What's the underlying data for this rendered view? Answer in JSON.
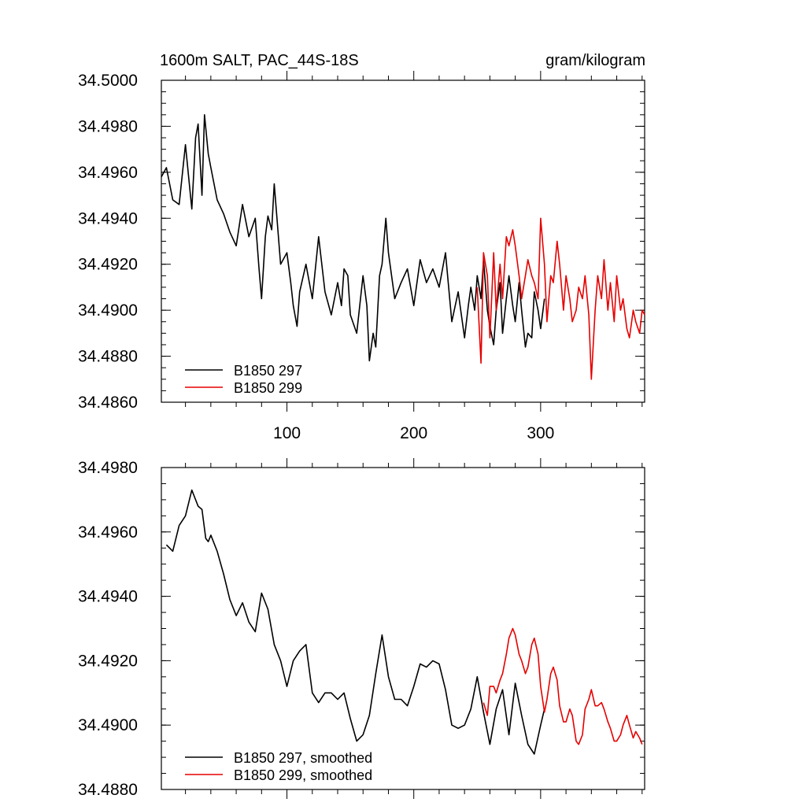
{
  "chart_data": [
    {
      "type": "line",
      "title": "1600m SALT, PAC_44S-18S",
      "units": "gram/kilogram",
      "xlim": [
        1,
        382
      ],
      "ylim": [
        34.486,
        34.5
      ],
      "xticks": [
        100,
        200,
        300
      ],
      "yticks": [
        "34.4860",
        "34.4880",
        "34.4900",
        "34.4920",
        "34.4940",
        "34.4960",
        "34.4980",
        "34.5000"
      ],
      "legend_position": "bottom-left",
      "series": [
        {
          "name": "B1850 297",
          "color": "#000000",
          "x": [
            1,
            5,
            10,
            15,
            20,
            25,
            28,
            30,
            33,
            35,
            38,
            40,
            45,
            50,
            55,
            60,
            65,
            70,
            75,
            78,
            80,
            83,
            85,
            88,
            90,
            95,
            100,
            103,
            105,
            108,
            110,
            115,
            120,
            125,
            130,
            135,
            140,
            143,
            145,
            148,
            150,
            155,
            160,
            163,
            165,
            168,
            170,
            173,
            175,
            178,
            180,
            185,
            190,
            195,
            200,
            205,
            210,
            215,
            220,
            225,
            230,
            235,
            240,
            243,
            245,
            248,
            250,
            253,
            255,
            258,
            260,
            263,
            265,
            268,
            270,
            273,
            275,
            278,
            280,
            283,
            285,
            288,
            290,
            293,
            295,
            298,
            300,
            303
          ],
          "values": [
            34.4958,
            34.4962,
            34.4948,
            34.4946,
            34.4972,
            34.4944,
            34.4975,
            34.4981,
            34.495,
            34.4985,
            34.4968,
            34.4962,
            34.4948,
            34.4942,
            34.4934,
            34.4928,
            34.4946,
            34.4932,
            34.494,
            34.4918,
            34.4905,
            34.4932,
            34.4941,
            34.4935,
            34.4955,
            34.492,
            34.4925,
            34.4912,
            34.4902,
            34.4893,
            34.4908,
            34.492,
            34.4905,
            34.4932,
            34.4908,
            34.4898,
            34.4912,
            34.4902,
            34.4918,
            34.4915,
            34.4898,
            34.489,
            34.4915,
            34.4902,
            34.4878,
            34.489,
            34.4884,
            34.4915,
            34.492,
            34.494,
            34.4925,
            34.4905,
            34.4912,
            34.4918,
            34.4902,
            34.4922,
            34.4912,
            34.4918,
            34.491,
            34.4925,
            34.4895,
            34.4908,
            34.4888,
            34.4902,
            34.491,
            34.49,
            34.4915,
            34.4905,
            34.4922,
            34.49,
            34.4893,
            34.4885,
            34.49,
            34.4912,
            34.489,
            34.4905,
            34.4915,
            34.4902,
            34.4895,
            34.4912,
            34.49,
            34.4884,
            34.489,
            34.4888,
            34.4908,
            34.49,
            34.4892,
            34.4905
          ]
        },
        {
          "name": "B1850 299",
          "color": "#e60000",
          "x": [
            250,
            253,
            255,
            258,
            260,
            263,
            265,
            268,
            270,
            273,
            275,
            278,
            280,
            283,
            285,
            288,
            290,
            293,
            295,
            298,
            300,
            303,
            305,
            308,
            310,
            313,
            315,
            318,
            320,
            323,
            325,
            328,
            330,
            333,
            335,
            338,
            340,
            343,
            345,
            348,
            350,
            353,
            355,
            358,
            360,
            363,
            365,
            368,
            370,
            373,
            375,
            378,
            380,
            382
          ],
          "values": [
            34.491,
            34.4877,
            34.4925,
            34.4915,
            34.4888,
            34.4925,
            34.49,
            34.492,
            34.4905,
            34.4932,
            34.4928,
            34.4935,
            34.4928,
            34.4915,
            34.4905,
            34.4915,
            34.4922,
            34.4915,
            34.4912,
            34.4905,
            34.494,
            34.492,
            34.4895,
            34.4915,
            34.4912,
            34.493,
            34.492,
            34.49,
            34.4915,
            34.4905,
            34.4895,
            34.49,
            34.491,
            34.4905,
            34.4915,
            34.4898,
            34.487,
            34.49,
            34.4915,
            34.4905,
            34.4922,
            34.49,
            34.4912,
            34.4895,
            34.4915,
            34.49,
            34.4905,
            34.4892,
            34.4888,
            34.49,
            34.4895,
            34.489,
            34.49,
            34.4898
          ]
        }
      ]
    },
    {
      "type": "line",
      "title": "",
      "xlim": [
        1,
        382
      ],
      "ylim": [
        34.488,
        34.498
      ],
      "yticks": [
        "34.4880",
        "34.4900",
        "34.4920",
        "34.4940",
        "34.4960",
        "34.4980"
      ],
      "legend_position": "bottom-left",
      "series": [
        {
          "name": "B1850 297, smoothed",
          "color": "#000000",
          "x": [
            5,
            10,
            15,
            20,
            25,
            30,
            33,
            36,
            38,
            40,
            45,
            50,
            55,
            60,
            65,
            70,
            75,
            80,
            85,
            90,
            95,
            100,
            105,
            110,
            115,
            120,
            125,
            130,
            135,
            140,
            145,
            150,
            155,
            160,
            165,
            170,
            175,
            180,
            185,
            190,
            195,
            200,
            205,
            210,
            215,
            220,
            225,
            230,
            235,
            240,
            245,
            250,
            255,
            260,
            265,
            270,
            275,
            280,
            285,
            290,
            295,
            300,
            303
          ],
          "values": [
            34.4956,
            34.4954,
            34.4962,
            34.4965,
            34.4973,
            34.4968,
            34.4967,
            34.4958,
            34.4957,
            34.4959,
            34.4954,
            34.4947,
            34.4939,
            34.4934,
            34.4938,
            34.4932,
            34.4929,
            34.4941,
            34.4936,
            34.4925,
            34.492,
            34.4912,
            34.492,
            34.4923,
            34.4925,
            34.491,
            34.4907,
            34.491,
            34.491,
            34.4908,
            34.491,
            34.4902,
            34.4895,
            34.4897,
            34.4903,
            34.4916,
            34.4928,
            34.4915,
            34.4908,
            34.4908,
            34.4906,
            34.4912,
            34.4919,
            34.4918,
            34.492,
            34.4919,
            34.4911,
            34.49,
            34.4899,
            34.49,
            34.4905,
            34.4915,
            34.4904,
            34.4894,
            34.4905,
            34.4911,
            34.4897,
            34.4913,
            34.4903,
            34.4894,
            34.4891,
            34.49,
            34.4905
          ]
        },
        {
          "name": "B1850 299, smoothed",
          "color": "#e60000",
          "x": [
            255,
            258,
            260,
            263,
            265,
            268,
            270,
            273,
            275,
            278,
            280,
            283,
            285,
            288,
            290,
            293,
            295,
            298,
            300,
            303,
            305,
            308,
            310,
            313,
            315,
            318,
            320,
            323,
            325,
            328,
            330,
            333,
            335,
            338,
            340,
            343,
            345,
            348,
            350,
            353,
            355,
            358,
            360,
            363,
            365,
            368,
            370,
            373,
            375,
            378,
            380
          ],
          "values": [
            34.4907,
            34.4903,
            34.4912,
            34.4912,
            34.491,
            34.4914,
            34.4916,
            34.4922,
            34.4927,
            34.493,
            34.4928,
            34.4922,
            34.492,
            34.4916,
            34.4918,
            34.4925,
            34.4927,
            34.4922,
            34.4912,
            34.4904,
            34.4908,
            34.4916,
            34.4918,
            34.4914,
            34.4906,
            34.4901,
            34.4901,
            34.4905,
            34.4903,
            34.4895,
            34.4894,
            34.4897,
            34.4905,
            34.4908,
            34.4911,
            34.4906,
            34.4906,
            34.4907,
            34.4905,
            34.4901,
            34.4899,
            34.4895,
            34.4895,
            34.4897,
            34.49,
            34.4903,
            34.49,
            34.4896,
            34.4898,
            34.4896,
            34.4894
          ]
        }
      ]
    }
  ]
}
